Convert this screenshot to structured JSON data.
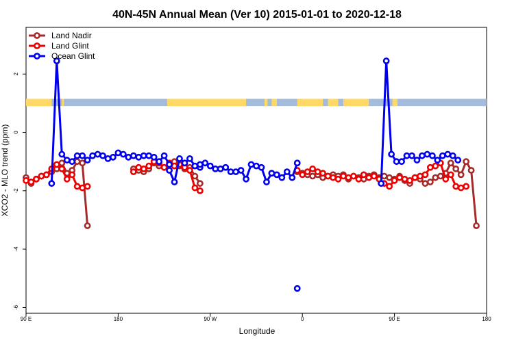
{
  "chart_data": {
    "type": "line",
    "title": "40N-45N Annual Mean (Ver 10)   2015-01-01 to 2020-12-18",
    "xlabel": "Longitude",
    "ylabel": "XCO2 - MLO trend (ppm)",
    "xlim": [
      -90,
      270
    ],
    "ylim": [
      -6.2,
      3.6
    ],
    "x_ticks": [
      -90,
      -30,
      30,
      90,
      150,
      210,
      270
    ],
    "x_tick_labels": [
      "90 E",
      "180",
      "90 W",
      "0",
      "90 E",
      "180"
    ],
    "x_tick_values": [
      90,
      180,
      270,
      360,
      450,
      540
    ],
    "y_ticks": [
      -6,
      -4,
      -2,
      0,
      2
    ],
    "y_tick_labels": [
      "-6",
      "-4",
      "-2",
      "0",
      "2"
    ],
    "legend_position": "top-left",
    "land_strip": {
      "y_range": [
        0.9,
        1.15
      ],
      "land_color": "#FFD966",
      "ocean_color": "#A4BBDB"
    },
    "series": [
      {
        "name": "Land Nadir",
        "color": "#A52A2A",
        "segments": [
          {
            "x": [
              90,
              95,
              100,
              105,
              110,
              115,
              120,
              125,
              130,
              135,
              140,
              145,
              150,
              155,
              160,
              165,
              170
            ],
            "y": [
              -1.55,
              -1.75,
              -1.6,
              -1.5,
              -1.45,
              -1.35,
              -1.25,
              -1.05,
              -1.4,
              -1.3,
              -1.0,
              -1.05,
              -3.2,
              null,
              null,
              null,
              null
            ]
          },
          {
            "x": [
              195,
              200,
              205,
              210,
              215,
              220,
              225,
              230,
              235,
              240,
              245,
              250,
              255,
              260,
              265,
              270,
              275,
              280
            ],
            "y": [
              -1.25,
              -1.3,
              -1.35,
              -1.25,
              -1.05,
              -1.15,
              -1.2,
              -1.1,
              -1.0,
              -1.15,
              -1.25,
              -1.2,
              -1.5,
              -1.75,
              null,
              null,
              null,
              null
            ]
          },
          {
            "x": [
              355,
              360,
              365,
              370,
              375,
              380,
              385,
              390,
              395,
              400,
              405,
              410,
              415,
              420,
              425,
              430,
              435,
              440,
              445,
              450,
              455,
              460,
              465,
              470,
              475,
              480,
              485,
              490,
              495,
              500,
              505,
              510,
              515,
              520,
              525,
              530,
              535
            ],
            "y": [
              -1.35,
              -1.4,
              -1.45,
              -1.5,
              -1.45,
              -1.55,
              -1.5,
              -1.45,
              -1.5,
              -1.45,
              -1.6,
              -1.5,
              -1.55,
              -1.6,
              -1.5,
              -1.45,
              -1.55,
              -1.5,
              -1.55,
              -1.6,
              -1.5,
              -1.65,
              -1.75,
              -1.55,
              -1.6,
              -1.75,
              -1.7,
              -1.55,
              -1.5,
              -1.4,
              -1.05,
              -1.25,
              -1.45,
              -1.0,
              -1.3,
              -3.2,
              null
            ]
          }
        ]
      },
      {
        "name": "Land Glint",
        "color": "#EE0000",
        "segments": [
          {
            "x": [
              90,
              95,
              100,
              105,
              110,
              115,
              120,
              125,
              130,
              135,
              140,
              145,
              150
            ],
            "y": [
              -1.65,
              -1.7,
              -1.6,
              -1.5,
              -1.45,
              -1.25,
              -1.1,
              -1.25,
              -1.6,
              -1.45,
              -1.85,
              -1.9,
              -1.85
            ]
          },
          {
            "x": [
              195,
              200,
              205,
              210,
              215,
              220,
              225,
              230,
              235,
              240,
              245,
              250,
              255,
              260
            ],
            "y": [
              -1.35,
              -1.2,
              -1.25,
              -1.15,
              -1.0,
              -1.05,
              -1.2,
              -1.05,
              -1.15,
              -1.1,
              -1.2,
              -1.3,
              -1.9,
              -2.0
            ]
          },
          {
            "x": [
              355,
              360,
              365,
              370,
              375,
              380,
              385,
              390,
              395,
              400,
              405,
              410,
              415,
              420,
              425,
              430,
              435,
              440,
              445,
              450,
              455,
              460,
              465,
              470,
              475,
              480,
              485,
              490,
              495,
              500,
              505,
              510,
              515,
              520
            ],
            "y": [
              -1.3,
              -1.45,
              -1.35,
              -1.25,
              -1.35,
              -1.4,
              -1.5,
              -1.55,
              -1.6,
              -1.5,
              -1.55,
              -1.5,
              -1.6,
              -1.45,
              -1.55,
              -1.5,
              -1.6,
              -1.75,
              -1.85,
              -1.65,
              -1.55,
              -1.6,
              -1.65,
              -1.55,
              -1.5,
              -1.45,
              -1.2,
              -1.15,
              -1.05,
              -1.6,
              -1.45,
              -1.85,
              -1.9,
              -1.85
            ]
          }
        ]
      },
      {
        "name": "Ocean Glint",
        "color": "#0000EE",
        "segments": [
          {
            "x": [
              115,
              120,
              125,
              130,
              135,
              140,
              145,
              150,
              155,
              160,
              165,
              170,
              175,
              180,
              185,
              190,
              195,
              200,
              205,
              210,
              215,
              220,
              225,
              230
            ],
            "y": [
              -1.75,
              2.45,
              -0.75,
              -0.95,
              -1.0,
              -0.8,
              -0.8,
              -0.95,
              -0.8,
              -0.75,
              -0.8,
              -0.9,
              -0.85,
              -0.7,
              -0.75,
              -0.85,
              -0.8,
              -0.85,
              -0.8,
              -0.8,
              -0.85,
              -1.0,
              -0.8,
              -1.1
            ]
          },
          {
            "x": [
              230,
              235,
              240,
              245,
              250,
              255,
              260
            ],
            "y": [
              -1.3,
              -1.7,
              -0.9,
              -1.05,
              -0.9,
              -1.15,
              -1.2
            ]
          },
          {
            "x": [
              260,
              265,
              270,
              275,
              280,
              285,
              290,
              295,
              300,
              305,
              310,
              315,
              320,
              325,
              330,
              335,
              340,
              345,
              350,
              355,
              360
            ],
            "y": [
              -1.1,
              -1.05,
              -1.15,
              -1.25,
              -1.25,
              -1.2,
              -1.35,
              -1.35,
              -1.3,
              -1.6,
              -1.1,
              -1.15,
              -1.2,
              -1.7,
              -1.4,
              -1.45,
              -1.55,
              -1.35,
              -1.55,
              -1.05,
              null
            ]
          },
          {
            "x": [
              355
            ],
            "y": [
              -5.35
            ]
          },
          {
            "x": [
              437,
              442,
              447,
              452,
              457,
              462,
              467,
              472,
              477,
              482,
              487,
              492,
              497,
              502,
              507,
              512
            ],
            "y": [
              -1.75,
              2.45,
              -0.75,
              -1.0,
              -1.0,
              -0.8,
              -0.8,
              -0.95,
              -0.8,
              -0.75,
              -0.8,
              -0.95,
              -0.8,
              -0.75,
              -0.8,
              -0.95
            ]
          }
        ]
      }
    ]
  }
}
